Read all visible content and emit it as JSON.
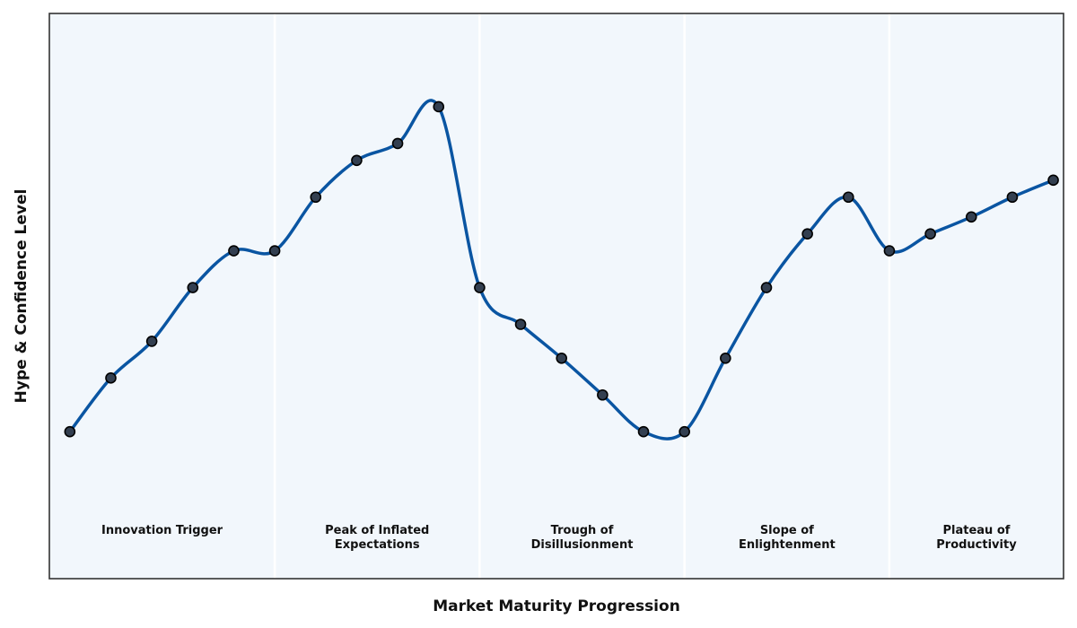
{
  "chart_data": {
    "type": "line",
    "xlabel": "Market Maturity Progression",
    "ylabel": "Hype & Confidence Level",
    "xlim": [
      0,
      24.75
    ],
    "ylim": [
      0,
      1
    ],
    "grid": false,
    "ticks_visible": false,
    "x": [
      0.5,
      1.5,
      2.5,
      3.5,
      4.5,
      5.5,
      6.5,
      7.5,
      8.5,
      9.5,
      10.5,
      11.5,
      12.5,
      13.5,
      14.5,
      15.5,
      16.5,
      17.5,
      18.5,
      19.5,
      20.5,
      21.5,
      22.5,
      23.5,
      24.5
    ],
    "values": [
      0.26,
      0.355,
      0.42,
      0.515,
      0.58,
      0.58,
      0.675,
      0.74,
      0.77,
      0.835,
      0.515,
      0.45,
      0.39,
      0.325,
      0.26,
      0.26,
      0.39,
      0.515,
      0.61,
      0.675,
      0.58,
      0.61,
      0.64,
      0.675,
      0.705
    ],
    "phases": [
      {
        "label": "Innovation Trigger",
        "x_start": 0,
        "x_end": 5.5
      },
      {
        "label": "Peak of Inflated\nExpectations",
        "x_start": 5.5,
        "x_end": 10.5
      },
      {
        "label": "Trough of\nDisillusionment",
        "x_start": 10.5,
        "x_end": 15.5
      },
      {
        "label": "Slope of\nEnlightenment",
        "x_start": 15.5,
        "x_end": 20.5
      },
      {
        "label": "Plateau of\nProductivity",
        "x_start": 20.5,
        "x_end": 24.75
      }
    ],
    "colors": {
      "line": "#0a55a2",
      "marker_fill": "#333f50",
      "marker_edge": "#000000",
      "background": "#f2f7fc",
      "frame": "#333333"
    }
  }
}
